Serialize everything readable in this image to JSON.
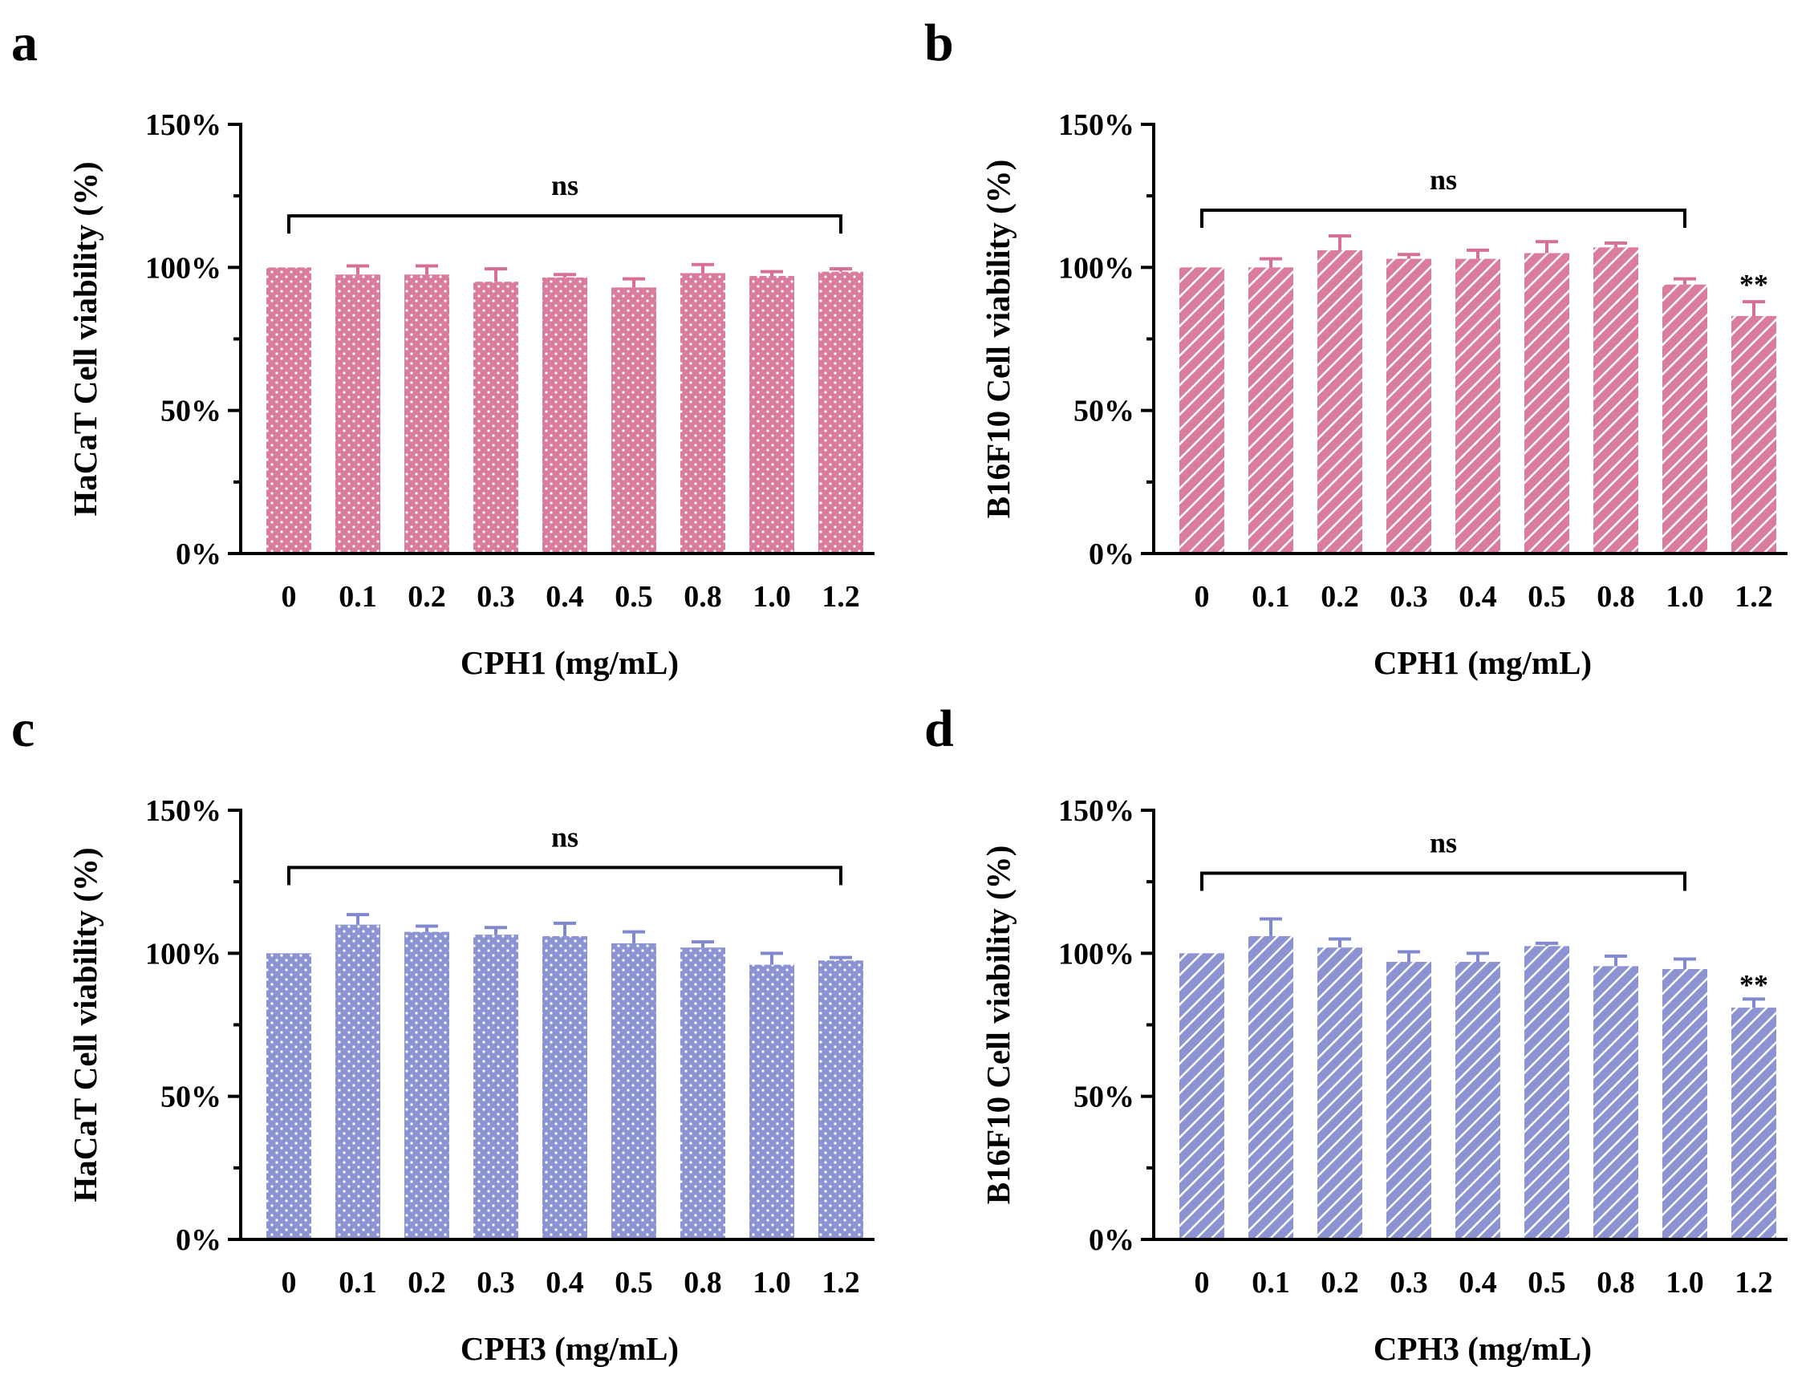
{
  "figure": {
    "fill_colors": {
      "pink": "#D97C9E",
      "blue": "#8C93D3"
    },
    "error_colors": {
      "pink": "#D66F93",
      "blue": "#8088CE"
    }
  },
  "chart_data": [
    {
      "panel": "a",
      "type": "bar",
      "title": "",
      "xlabel": "CPH1 (mg/mL)",
      "ylabel": "HaCaT Cell viability (%)",
      "categories": [
        "0",
        "0.1",
        "0.2",
        "0.3",
        "0.4",
        "0.5",
        "0.8",
        "1.0",
        "1.2"
      ],
      "values": [
        100,
        97.5,
        97.5,
        95,
        96.5,
        93,
        98,
        97,
        98.5
      ],
      "errors": [
        0,
        3,
        3,
        4.5,
        1,
        3,
        3,
        1.5,
        1
      ],
      "ylim": [
        0,
        150
      ],
      "yticks": [
        0,
        50,
        100,
        150
      ],
      "ytick_labels": [
        "0%",
        "50%",
        "100%",
        "150%"
      ],
      "color": "pink",
      "pattern": "dots",
      "significance": [
        {
          "label": "ns",
          "from": 0,
          "to": 8,
          "height": 118
        }
      ]
    },
    {
      "panel": "b",
      "type": "bar",
      "title": "",
      "xlabel": "CPH1 (mg/mL)",
      "ylabel": "B16F10 Cell viability (%)",
      "categories": [
        "0",
        "0.1",
        "0.2",
        "0.3",
        "0.4",
        "0.5",
        "0.8",
        "1.0",
        "1.2"
      ],
      "values": [
        100,
        100,
        106,
        103,
        103,
        105,
        107,
        94,
        83
      ],
      "errors": [
        0,
        3,
        5,
        1.5,
        3,
        4,
        1.5,
        2,
        5
      ],
      "ylim": [
        0,
        150
      ],
      "yticks": [
        0,
        50,
        100,
        150
      ],
      "ytick_labels": [
        "0%",
        "50%",
        "100%",
        "150%"
      ],
      "color": "pink",
      "pattern": "hatch",
      "significance": [
        {
          "label": "ns",
          "from": 0,
          "to": 7,
          "height": 120
        },
        {
          "label": "**",
          "from": 8,
          "to": 8,
          "height": 94
        }
      ]
    },
    {
      "panel": "c",
      "type": "bar",
      "title": "",
      "xlabel": "CPH3 (mg/mL)",
      "ylabel": "HaCaT Cell viability (%)",
      "categories": [
        "0",
        "0.1",
        "0.2",
        "0.3",
        "0.4",
        "0.5",
        "0.8",
        "1.0",
        "1.2"
      ],
      "values": [
        100,
        110,
        107.5,
        106.5,
        106,
        103.5,
        102,
        96,
        97.5
      ],
      "errors": [
        0,
        3.5,
        2,
        2.5,
        4.5,
        4,
        2,
        4,
        1
      ],
      "ylim": [
        0,
        150
      ],
      "yticks": [
        0,
        50,
        100,
        150
      ],
      "ytick_labels": [
        "0%",
        "50%",
        "100%",
        "150%"
      ],
      "color": "blue",
      "pattern": "dots",
      "significance": [
        {
          "label": "ns",
          "from": 0,
          "to": 8,
          "height": 130
        }
      ]
    },
    {
      "panel": "d",
      "type": "bar",
      "title": "",
      "xlabel": "CPH3 (mg/mL)",
      "ylabel": "B16F10 Cell viability (%)",
      "categories": [
        "0",
        "0.1",
        "0.2",
        "0.3",
        "0.4",
        "0.5",
        "0.8",
        "1.0",
        "1.2"
      ],
      "values": [
        100,
        106,
        102,
        97,
        97,
        102.5,
        95.5,
        94.5,
        81
      ],
      "errors": [
        0,
        6,
        3,
        3.5,
        3,
        1,
        3.5,
        3.5,
        3
      ],
      "ylim": [
        0,
        150
      ],
      "yticks": [
        0,
        50,
        100,
        150
      ],
      "ytick_labels": [
        "0%",
        "50%",
        "100%",
        "150%"
      ],
      "color": "blue",
      "pattern": "hatch",
      "significance": [
        {
          "label": "ns",
          "from": 0,
          "to": 7,
          "height": 128
        },
        {
          "label": "**",
          "from": 8,
          "to": 8,
          "height": 89
        }
      ]
    }
  ]
}
